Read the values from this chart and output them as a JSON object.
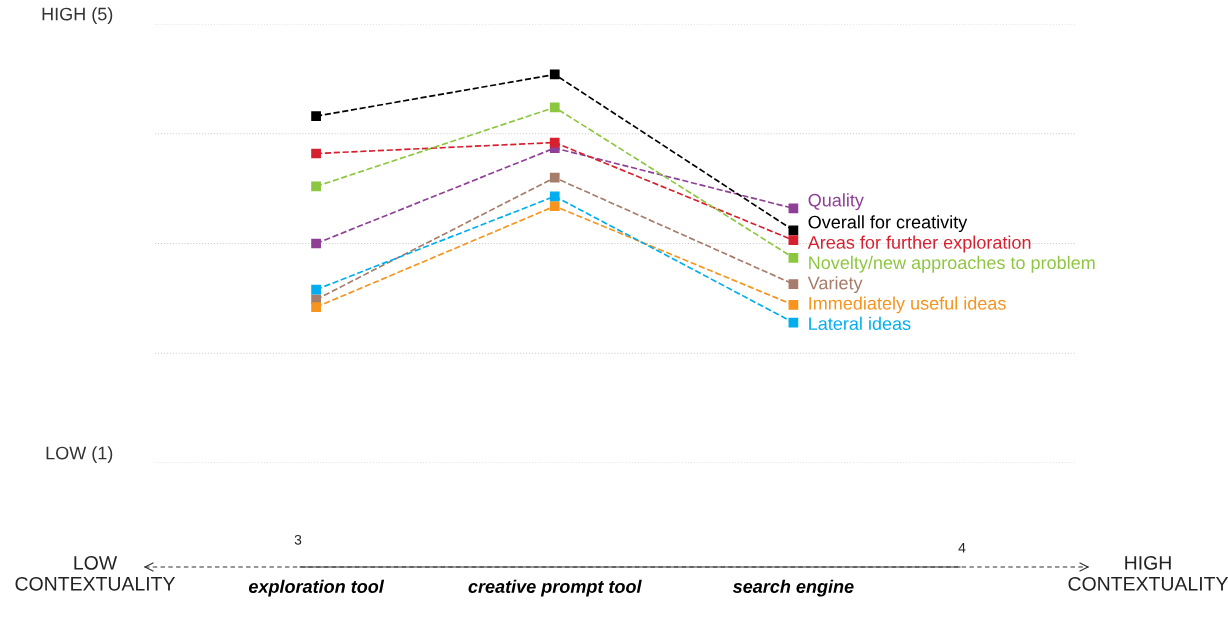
{
  "chart_data": {
    "type": "line",
    "categories": [
      "exploration tool",
      "creative prompt tool",
      "search engine"
    ],
    "series": [
      {
        "name": "Quality",
        "color": "#8e3f96",
        "values": [
          3.0,
          3.87,
          3.32
        ]
      },
      {
        "name": "Overall for creativity",
        "color": "#000000",
        "values": [
          4.16,
          4.54,
          3.12
        ]
      },
      {
        "name": "Areas for further exploration",
        "color": "#d7202f",
        "values": [
          3.82,
          3.92,
          3.03
        ]
      },
      {
        "name": "Novelty/new approaches to problem",
        "color": "#8dc63f",
        "values": [
          3.52,
          4.24,
          2.87
        ]
      },
      {
        "name": "Variety",
        "color": "#a67c6b",
        "values": [
          2.49,
          3.6,
          2.63
        ]
      },
      {
        "name": "Immediately useful ideas",
        "color": "#f7941d",
        "values": [
          2.42,
          3.34,
          2.44
        ]
      },
      {
        "name": "Lateral ideas",
        "color": "#00aeef",
        "values": [
          2.58,
          3.43,
          2.28
        ]
      }
    ],
    "ylim": [
      1,
      5
    ],
    "yticks": [
      {
        "value": 1,
        "label": "LOW (1)"
      },
      {
        "value": 2,
        "label": null
      },
      {
        "value": 3,
        "label": null
      },
      {
        "value": 4,
        "label": null
      },
      {
        "value": 5,
        "label": "HIGH (5)"
      }
    ],
    "grid": "y",
    "legend": false,
    "marker": "square",
    "line_style": "dashed",
    "annotations": [
      "LOW\nCONTEXTUALITY",
      "HIGH\nCONTEXTUALITY",
      "3",
      "4"
    ]
  }
}
